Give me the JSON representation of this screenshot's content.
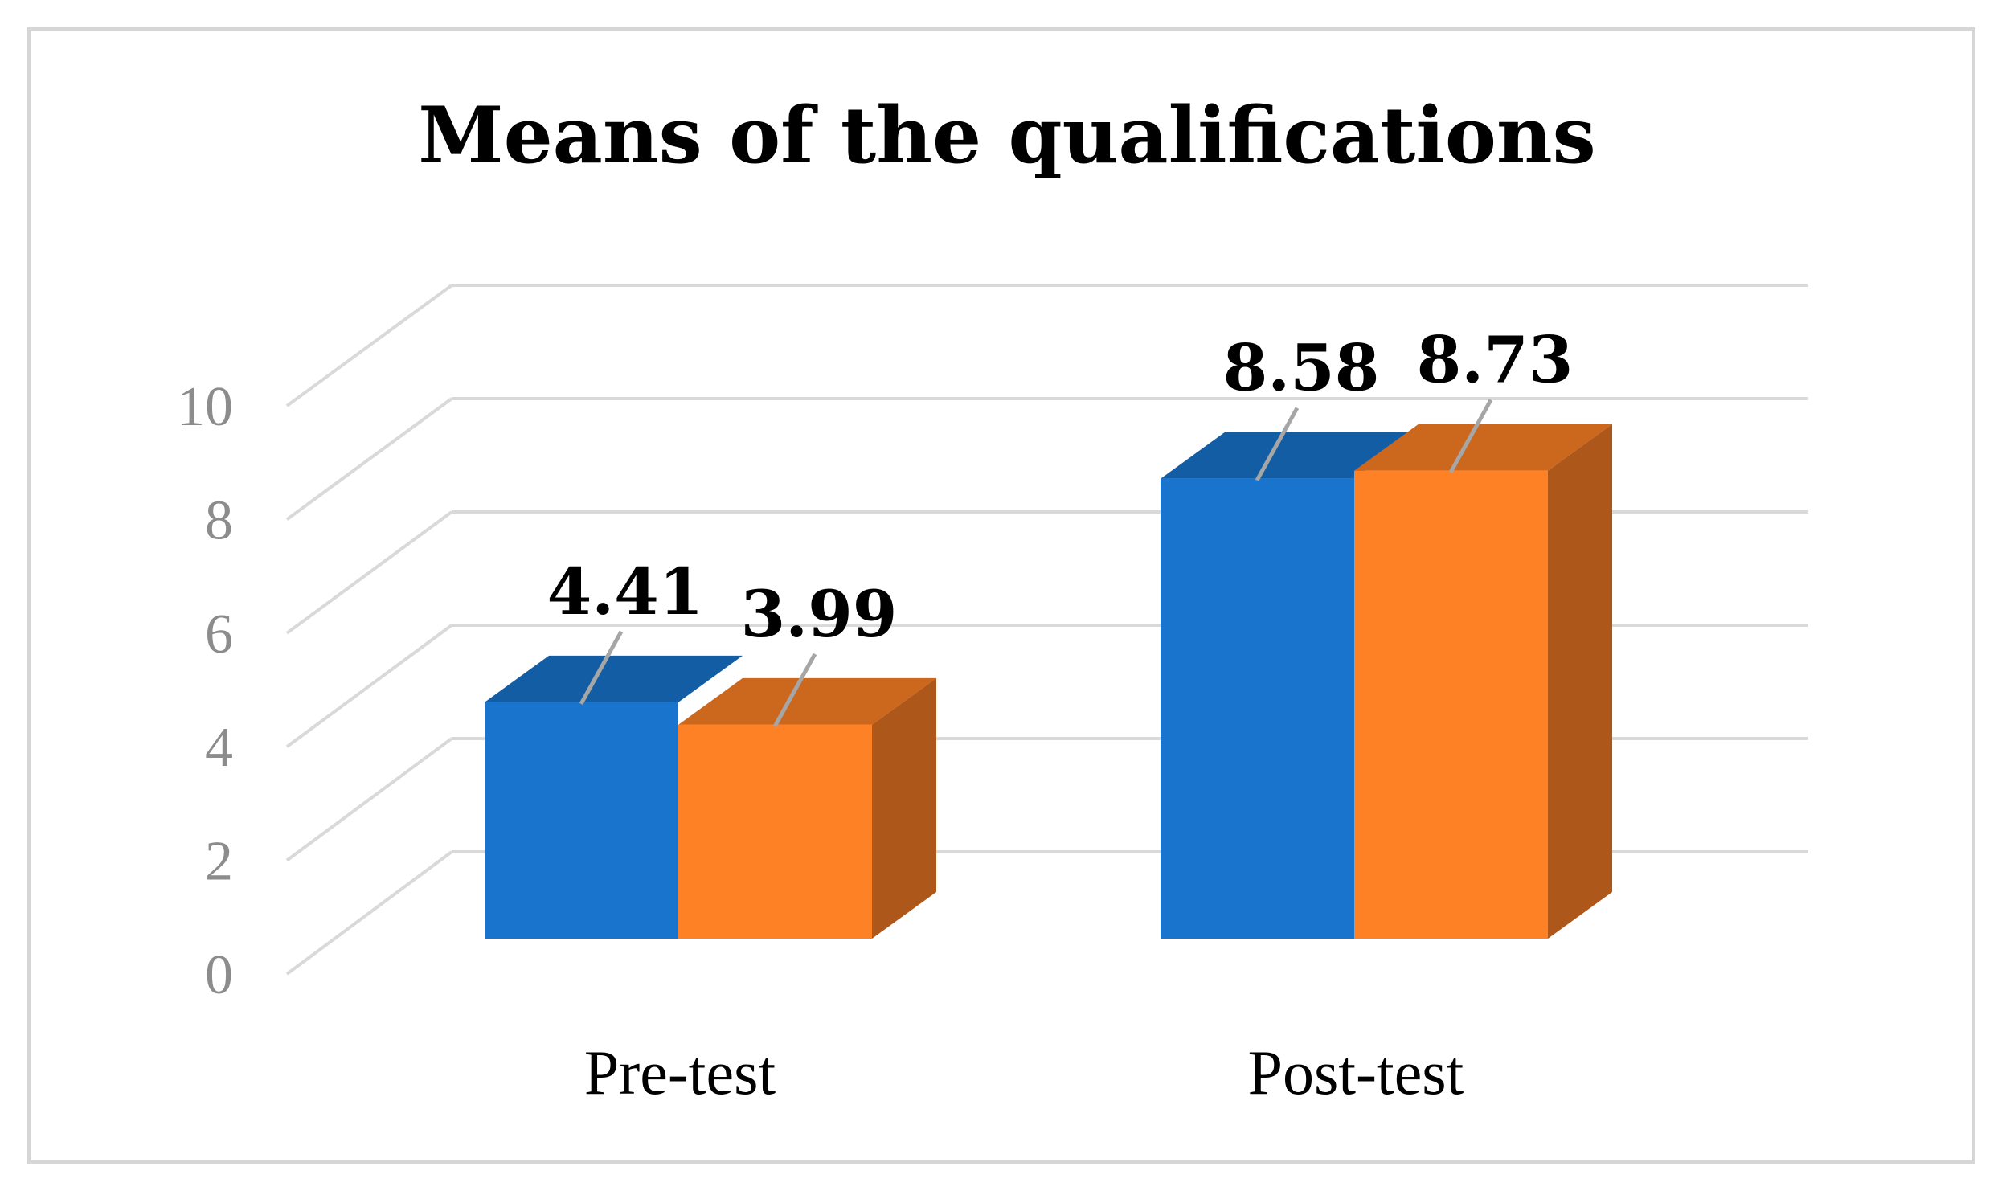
{
  "chart_data": {
    "type": "bar",
    "title": "Means of the qualifications",
    "xlabel": "",
    "ylabel": "",
    "categories": [
      "Pre-test",
      "Post-test"
    ],
    "series": [
      {
        "values": [
          4.41,
          8.58
        ],
        "color": "#1874cd"
      },
      {
        "values": [
          3.99,
          8.73
        ],
        "color": "#ff8126"
      }
    ],
    "data_labels": [
      [
        "4.41",
        "8.58"
      ],
      [
        "3.99",
        "8.73"
      ]
    ],
    "ylim": [
      0,
      10
    ],
    "yticks": [
      0,
      2,
      4,
      6,
      8,
      10
    ],
    "ytick_labels": [
      "0",
      "2",
      "4",
      "6",
      "8",
      "10"
    ],
    "grid": true,
    "legend": "none",
    "style": "3d"
  }
}
